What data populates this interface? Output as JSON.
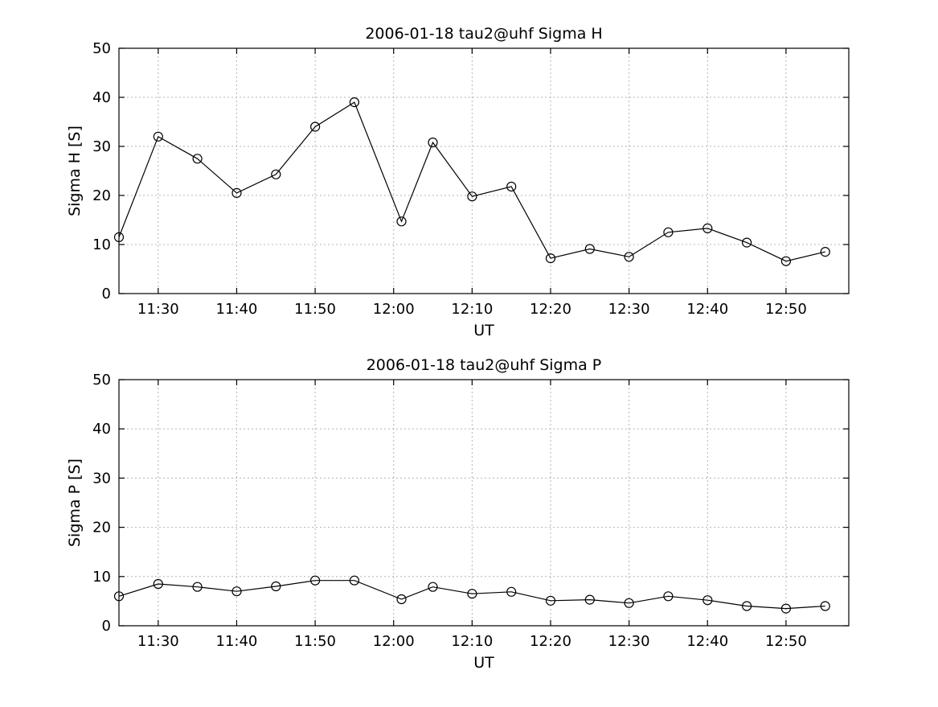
{
  "figure": {
    "background": "#ffffff",
    "axis_color": "#000000",
    "grid_color": "#b3b3b3",
    "line_color": "#000000",
    "marker": "open-circle"
  },
  "chart_data": [
    {
      "type": "line",
      "title": "2006-01-18  tau2@uhf Sigma H",
      "xlabel": "UT",
      "ylabel": "Sigma H [S]",
      "ylim": [
        0,
        50
      ],
      "yticks": [
        0,
        10,
        20,
        30,
        40,
        50
      ],
      "xlim": [
        "11:25",
        "12:58"
      ],
      "xticks": [
        "11:30",
        "11:40",
        "11:50",
        "12:00",
        "12:10",
        "12:20",
        "12:30",
        "12:40",
        "12:50"
      ],
      "grid": true,
      "legend": false,
      "series": [
        {
          "name": "Sigma H",
          "points": [
            [
              "11:25",
              11.5
            ],
            [
              "11:30",
              32.0
            ],
            [
              "11:35",
              27.5
            ],
            [
              "11:40",
              20.5
            ],
            [
              "11:45",
              24.3
            ],
            [
              "11:50",
              34.0
            ],
            [
              "11:55",
              39.0
            ],
            [
              "12:01",
              14.7
            ],
            [
              "12:05",
              30.8
            ],
            [
              "12:10",
              19.8
            ],
            [
              "12:15",
              21.8
            ],
            [
              "12:20",
              7.2
            ],
            [
              "12:25",
              9.1
            ],
            [
              "12:30",
              7.5
            ],
            [
              "12:35",
              12.5
            ],
            [
              "12:40",
              13.3
            ],
            [
              "12:45",
              10.4
            ],
            [
              "12:50",
              6.6
            ],
            [
              "12:55",
              8.5
            ]
          ]
        }
      ]
    },
    {
      "type": "line",
      "title": "2006-01-18  tau2@uhf Sigma P",
      "xlabel": "UT",
      "ylabel": "Sigma P [S]",
      "ylim": [
        0,
        50
      ],
      "yticks": [
        0,
        10,
        20,
        30,
        40,
        50
      ],
      "xlim": [
        "11:25",
        "12:58"
      ],
      "xticks": [
        "11:30",
        "11:40",
        "11:50",
        "12:00",
        "12:10",
        "12:20",
        "12:30",
        "12:40",
        "12:50"
      ],
      "grid": true,
      "legend": false,
      "series": [
        {
          "name": "Sigma P",
          "points": [
            [
              "11:25",
              6.0
            ],
            [
              "11:30",
              8.5
            ],
            [
              "11:35",
              7.9
            ],
            [
              "11:40",
              7.0
            ],
            [
              "11:45",
              8.0
            ],
            [
              "11:50",
              9.2
            ],
            [
              "11:55",
              9.2
            ],
            [
              "12:01",
              5.4
            ],
            [
              "12:05",
              7.9
            ],
            [
              "12:10",
              6.5
            ],
            [
              "12:15",
              6.9
            ],
            [
              "12:20",
              5.1
            ],
            [
              "12:25",
              5.3
            ],
            [
              "12:30",
              4.6
            ],
            [
              "12:35",
              6.0
            ],
            [
              "12:40",
              5.2
            ],
            [
              "12:45",
              4.0
            ],
            [
              "12:50",
              3.5
            ],
            [
              "12:55",
              4.0
            ]
          ]
        }
      ]
    }
  ]
}
